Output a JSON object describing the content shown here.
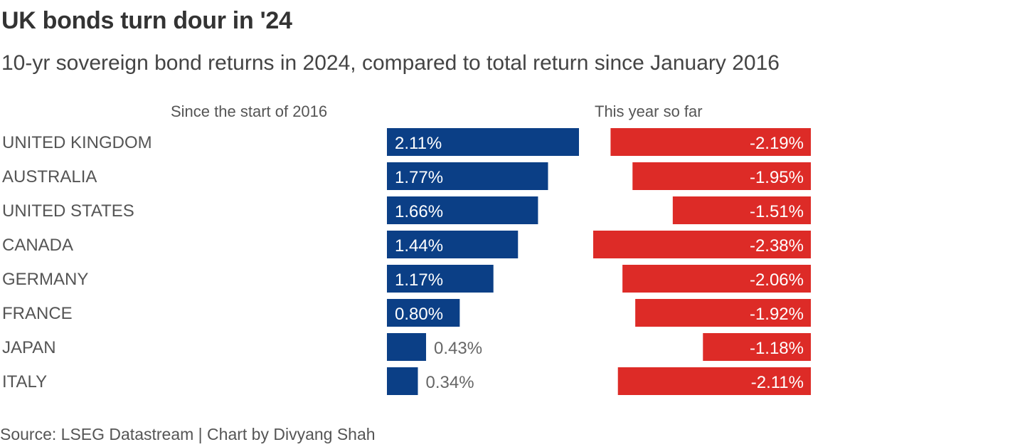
{
  "title": "UK bonds turn dour in '24",
  "subtitle": "10-yr sovereign bond returns in 2024, compared to total return since January 2016",
  "source": "Source: LSEG Datastream | Chart by Divyang Shah",
  "chart_data": {
    "type": "bar",
    "orientation": "horizontal",
    "categories": [
      "UNITED KINGDOM",
      "AUSTRALIA",
      "UNITED STATES",
      "CANADA",
      "GERMANY",
      "FRANCE",
      "JAPAN",
      "ITALY"
    ],
    "series": [
      {
        "name": "Since the start of 2016",
        "color": "#0b3f86",
        "values": [
          2.11,
          1.77,
          1.66,
          1.44,
          1.17,
          0.8,
          0.43,
          0.34
        ],
        "labels": [
          "2.11%",
          "1.77%",
          "1.66%",
          "1.44%",
          "1.17%",
          "0.80%",
          "0.43%",
          "0.34%"
        ]
      },
      {
        "name": "This year so far",
        "color": "#dd2b27",
        "values": [
          -2.19,
          -1.95,
          -1.51,
          -2.38,
          -2.06,
          -1.92,
          -1.18,
          -2.11
        ],
        "labels": [
          "-2.19%",
          "-1.95%",
          "-1.51%",
          "-2.38%",
          "-2.06%",
          "-1.92%",
          "-1.18%",
          "-2.11%"
        ]
      }
    ],
    "unit": "%"
  }
}
